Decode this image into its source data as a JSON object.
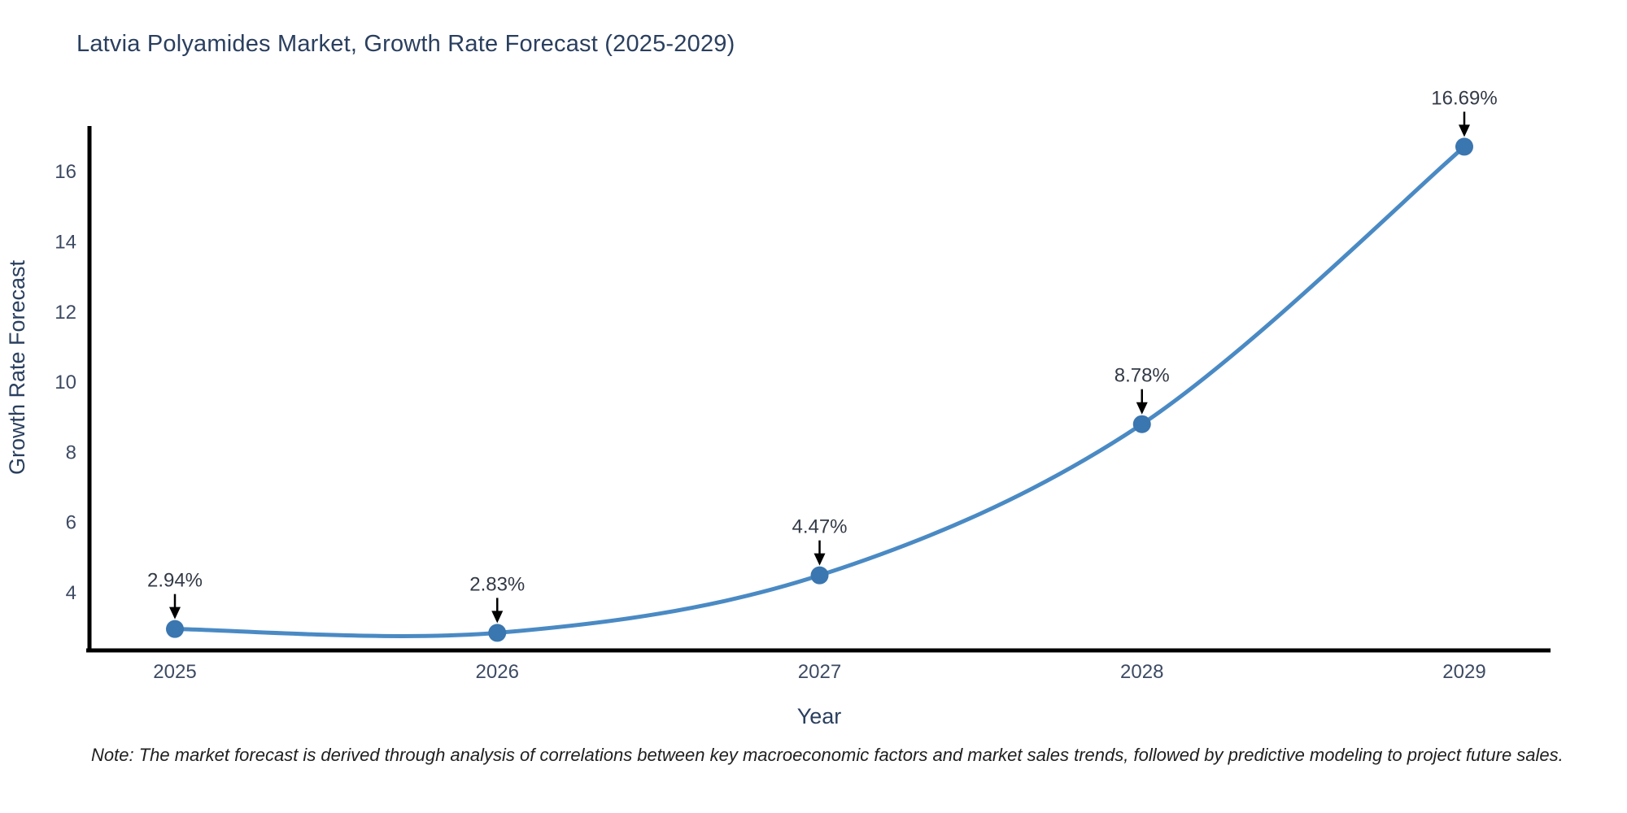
{
  "page": {
    "background": "#ffffff"
  },
  "header": {
    "title": "Latvia Polyamides Market, Growth Rate Forecast (2025-2029)"
  },
  "footnote": {
    "text": "Note: The market forecast is derived through analysis of correlations between key macroeconomic factors and market sales trends, followed by predictive modeling to project future sales."
  },
  "chart_data": {
    "type": "line",
    "title": "Latvia Polyamides Market, Growth Rate Forecast (2025-2029)",
    "xlabel": "Year",
    "ylabel": "Growth Rate Forecast",
    "categories": [
      "2025",
      "2026",
      "2027",
      "2028",
      "2029"
    ],
    "series": [
      {
        "name": "Growth Rate Forecast",
        "values": [
          2.94,
          2.83,
          4.47,
          8.78,
          16.69
        ]
      }
    ],
    "point_labels": [
      "2.94%",
      "2.83%",
      "4.47%",
      "8.78%",
      "16.69%"
    ],
    "yticks": [
      4,
      6,
      8,
      10,
      12,
      14,
      16
    ],
    "ylim": [
      2.33,
      17.21
    ],
    "grid": false,
    "legend": "none",
    "curve": "spline",
    "line_color": "#4a8ac4",
    "marker_color": "#3a76b0",
    "axis_color": "#000000",
    "text_color": "#2a3f5f",
    "tick_color": "#3d4a63",
    "annotation_color": "#333a46"
  }
}
